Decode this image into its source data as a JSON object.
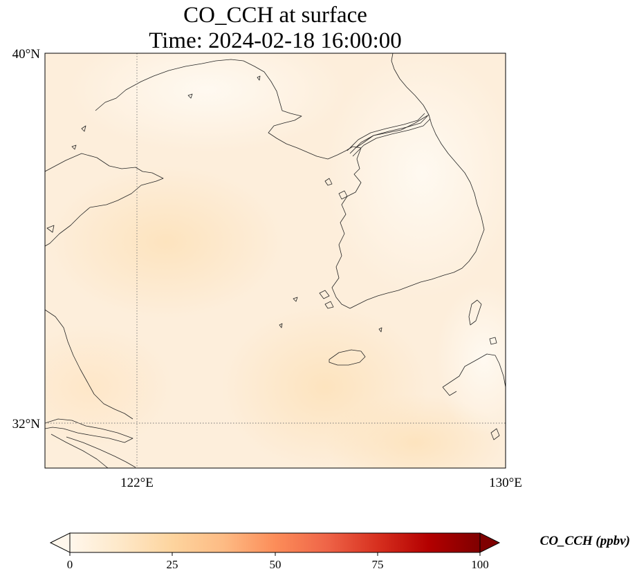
{
  "title": {
    "line1": "CO_CCH at surface",
    "line2": "Time: 2024-02-18 16:00:00"
  },
  "map": {
    "lat_labels": [
      "40°N",
      "32°N"
    ],
    "lon_labels": [
      "122°E",
      "130°E"
    ],
    "gridlines": "dotted",
    "colormap": "OrRd"
  },
  "colorbar": {
    "label": "CO_CCH (ppbv)",
    "ticks": [
      "0",
      "25",
      "50",
      "75",
      "100"
    ],
    "min": 0,
    "max": 100,
    "extend": "both",
    "colors": [
      "#fff7ec",
      "#fee8c8",
      "#fdd49e",
      "#fdbb84",
      "#fc8d59",
      "#ef6548",
      "#d7301f",
      "#b30000",
      "#7f0000"
    ]
  }
}
